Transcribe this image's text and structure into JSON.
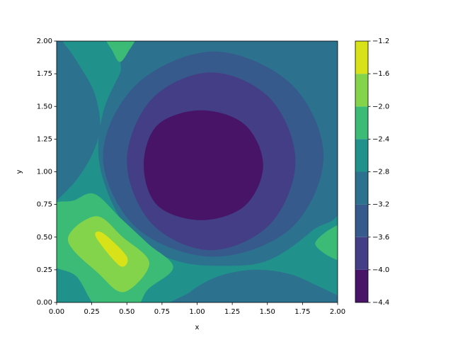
{
  "chart_data": {
    "type": "contour",
    "x_label": "x",
    "y_label": "y",
    "xlim": [
      0,
      2
    ],
    "ylim": [
      0,
      2
    ],
    "xticks": [
      {
        "value": 0,
        "label": "0.00"
      },
      {
        "value": 0.25,
        "label": "0.25"
      },
      {
        "value": 0.5,
        "label": "0.50"
      },
      {
        "value": 0.75,
        "label": "0.75"
      },
      {
        "value": 1,
        "label": "1.00"
      },
      {
        "value": 1.25,
        "label": "1.25"
      },
      {
        "value": 1.5,
        "label": "1.50"
      },
      {
        "value": 1.75,
        "label": "1.75"
      },
      {
        "value": 2,
        "label": "2.00"
      }
    ],
    "yticks": [
      {
        "value": 0,
        "label": "0.00"
      },
      {
        "value": 0.25,
        "label": "0.25"
      },
      {
        "value": 0.5,
        "label": "0.50"
      },
      {
        "value": 0.75,
        "label": "0.75"
      },
      {
        "value": 1,
        "label": "1.00"
      },
      {
        "value": 1.25,
        "label": "1.25"
      },
      {
        "value": 1.5,
        "label": "1.50"
      },
      {
        "value": 1.75,
        "label": "1.75"
      },
      {
        "value": 2,
        "label": "2.00"
      }
    ],
    "levels": [
      {
        "value": -4.4,
        "label": "−4.4"
      },
      {
        "value": -4.0,
        "label": "−4.0"
      },
      {
        "value": -3.6,
        "label": "−3.6"
      },
      {
        "value": -3.2,
        "label": "−3.2"
      },
      {
        "value": -2.8,
        "label": "−2.8"
      },
      {
        "value": -2.4,
        "label": "−2.4"
      },
      {
        "value": -2.0,
        "label": "−2.0"
      },
      {
        "value": -1.6,
        "label": "−1.6"
      },
      {
        "value": -1.2,
        "label": "−1.2"
      }
    ],
    "colors": [
      "#471468",
      "#433e85",
      "#375a8c",
      "#2c718e",
      "#21918c",
      "#3bbb75",
      "#84d44b",
      "#d8e219"
    ],
    "background_level": -2.8,
    "regions": [
      {
        "level": -3.2,
        "points": [
          [
            0,
            0.78
          ],
          [
            0.15,
            0.95
          ],
          [
            0.26,
            1.15
          ],
          [
            0.31,
            1.35
          ],
          [
            0.27,
            1.6
          ],
          [
            0.17,
            1.8
          ],
          [
            0.06,
            1.97
          ],
          [
            -0.05,
            2.05
          ],
          [
            -0.05,
            0.75
          ]
        ]
      },
      {
        "level": -3.2,
        "points": [
          [
            0.86,
            -0.05
          ],
          [
            0.95,
            0.08
          ],
          [
            1.15,
            0.2
          ],
          [
            1.4,
            0.25
          ],
          [
            1.65,
            0.22
          ],
          [
            1.85,
            0.13
          ],
          [
            2.05,
            0.02
          ],
          [
            2.05,
            -0.05
          ]
        ]
      },
      {
        "level": -3.2,
        "points": [
          [
            0.6,
            2.05
          ],
          [
            2.05,
            2.05
          ],
          [
            2.05,
            0.82
          ],
          [
            1.82,
            0.55
          ],
          [
            1.5,
            0.32
          ],
          [
            1.15,
            0.28
          ],
          [
            0.85,
            0.32
          ],
          [
            0.58,
            0.47
          ],
          [
            0.4,
            0.75
          ],
          [
            0.3,
            1.1
          ],
          [
            0.33,
            1.45
          ],
          [
            0.45,
            1.75
          ]
        ]
      },
      {
        "level": -3.6,
        "points": [
          [
            1.9,
            1.12
          ],
          [
            1.67,
            1.67
          ],
          [
            1.12,
            1.92
          ],
          [
            0.57,
            1.67
          ],
          [
            0.33,
            1.12
          ],
          [
            0.57,
            0.57
          ],
          [
            1.12,
            0.35
          ],
          [
            1.67,
            0.57
          ]
        ]
      },
      {
        "level": -4.0,
        "points": [
          [
            1.7,
            1.08
          ],
          [
            1.52,
            1.56
          ],
          [
            1.1,
            1.76
          ],
          [
            0.68,
            1.56
          ],
          [
            0.5,
            1.08
          ],
          [
            0.68,
            0.6
          ],
          [
            1.1,
            0.4
          ],
          [
            1.52,
            0.6
          ]
        ]
      },
      {
        "level": -4.4,
        "points": [
          [
            1.47,
            1.05
          ],
          [
            1.34,
            1.36
          ],
          [
            1.03,
            1.47
          ],
          [
            0.72,
            1.36
          ],
          [
            0.62,
            1.05
          ],
          [
            0.72,
            0.74
          ],
          [
            1.03,
            0.63
          ],
          [
            1.34,
            0.74
          ]
        ]
      },
      {
        "level": -2.4,
        "points": [
          [
            -0.05,
            0.32
          ],
          [
            -0.05,
            0.72
          ],
          [
            0.12,
            0.78
          ],
          [
            0.27,
            0.83
          ],
          [
            0.46,
            0.64
          ],
          [
            0.65,
            0.45
          ],
          [
            0.83,
            0.27
          ],
          [
            0.65,
            0.1
          ],
          [
            0.55,
            -0.05
          ],
          [
            0.3,
            -0.05
          ],
          [
            0.14,
            0.2
          ]
        ]
      },
      {
        "level": -2.0,
        "points": [
          [
            0.08,
            0.48
          ],
          [
            0.28,
            0.66
          ],
          [
            0.47,
            0.5
          ],
          [
            0.66,
            0.3
          ],
          [
            0.48,
            0.08
          ],
          [
            0.3,
            0.22
          ]
        ]
      },
      {
        "level": -1.6,
        "points": [
          [
            0.28,
            0.5
          ],
          [
            0.33,
            0.53
          ],
          [
            0.5,
            0.35
          ],
          [
            0.45,
            0.28
          ]
        ]
      },
      {
        "level": -2.4,
        "points": [
          [
            0.35,
            2.05
          ],
          [
            0.56,
            2.05
          ],
          [
            0.51,
            1.92
          ],
          [
            0.45,
            1.84
          ],
          [
            0.4,
            1.92
          ]
        ]
      },
      {
        "level": -2.4,
        "points": [
          [
            2.05,
            0.6
          ],
          [
            1.84,
            0.45
          ],
          [
            2.05,
            0.32
          ]
        ]
      }
    ]
  }
}
